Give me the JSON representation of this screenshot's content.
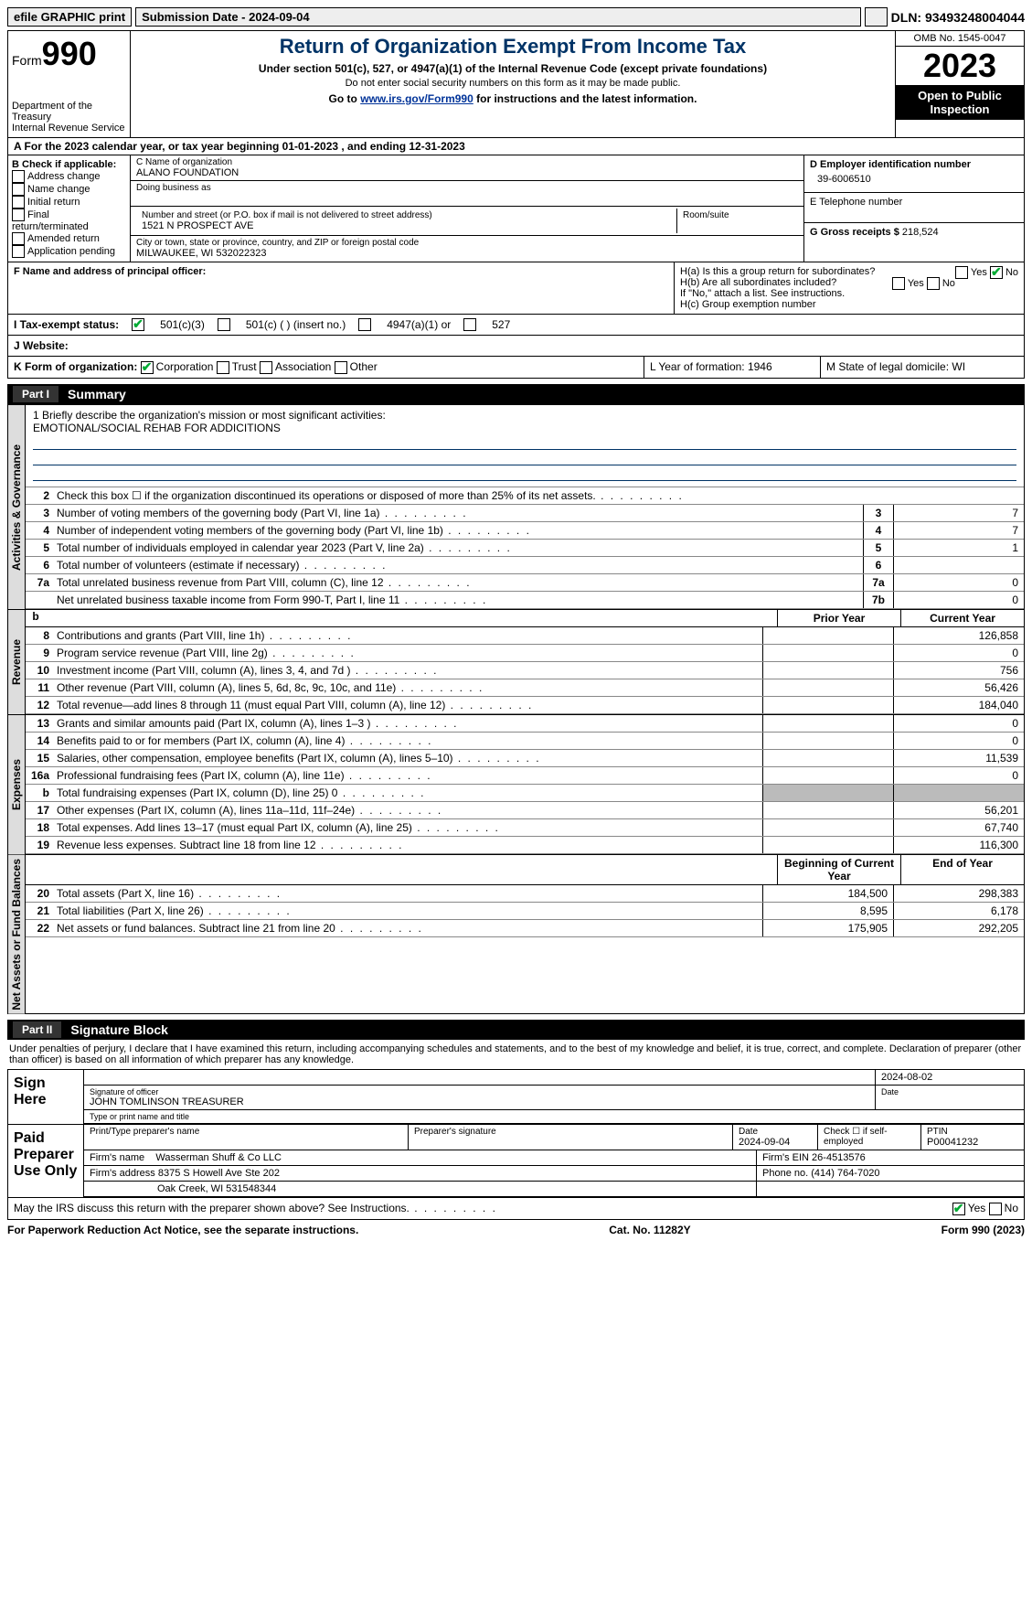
{
  "topbar": {
    "efile": "efile GRAPHIC print",
    "subdate": "Submission Date - 2024-09-04",
    "dln": "DLN: 93493248004044"
  },
  "header": {
    "form_label": "Form",
    "form_no": "990",
    "dept": "Department of the Treasury",
    "irs": "Internal Revenue Service",
    "title": "Return of Organization Exempt From Income Tax",
    "sub": "Under section 501(c), 527, or 4947(a)(1) of the Internal Revenue Code (except private foundations)",
    "sub2": "Do not enter social security numbers on this form as it may be made public.",
    "sub3_a": "Go to ",
    "sub3_link": "www.irs.gov/Form990",
    "sub3_b": " for instructions and the latest information.",
    "omb": "OMB No. 1545-0047",
    "year": "2023",
    "open": "Open to Public Inspection"
  },
  "line_a": "A For the 2023 calendar year, or tax year beginning 01-01-2023   , and ending 12-31-2023",
  "box_b": {
    "title": "B Check if applicable:",
    "opts": [
      "Address change",
      "Name change",
      "Initial return",
      "Final return/terminated",
      "Amended return",
      "Application pending"
    ]
  },
  "box_c": {
    "name_lbl": "C Name of organization",
    "name": "ALANO FOUNDATION",
    "dba_lbl": "Doing business as",
    "addr_lbl": "Number and street (or P.O. box if mail is not delivered to street address)",
    "room_lbl": "Room/suite",
    "addr": "1521 N PROSPECT AVE",
    "city_lbl": "City or town, state or province, country, and ZIP or foreign postal code",
    "city": "MILWAUKEE, WI  532022323"
  },
  "box_d": {
    "lbl": "D Employer identification number",
    "val": "39-6006510"
  },
  "box_e": {
    "lbl": "E Telephone number",
    "val": ""
  },
  "box_g": {
    "lbl": "G Gross receipts $",
    "val": "218,524"
  },
  "box_f": {
    "lbl": "F  Name and address of principal officer:",
    "val": ""
  },
  "box_h": {
    "a": "H(a)  Is this a group return for subordinates?",
    "b": "H(b)  Are all subordinates included?",
    "note": "If \"No,\" attach a list. See instructions.",
    "c": "H(c)  Group exemption number",
    "yes": "Yes",
    "no": "No"
  },
  "line_i": {
    "lbl": "I   Tax-exempt status:",
    "o1": "501(c)(3)",
    "o2": "501(c) (  ) (insert no.)",
    "o3": "4947(a)(1) or",
    "o4": "527"
  },
  "line_j": "J   Website:",
  "line_k": {
    "lbl": "K Form of organization:",
    "o1": "Corporation",
    "o2": "Trust",
    "o3": "Association",
    "o4": "Other"
  },
  "line_l": "L Year of formation: 1946",
  "line_m": "M State of legal domicile: WI",
  "part1": {
    "tab": "Part I",
    "title": "Summary"
  },
  "mission": {
    "lbl": "1   Briefly describe the organization's mission or most significant activities:",
    "txt": "EMOTIONAL/SOCIAL REHAB FOR ADDICITIONS"
  },
  "vtabs": {
    "gov": "Activities & Governance",
    "rev": "Revenue",
    "exp": "Expenses",
    "net": "Net Assets or Fund Balances"
  },
  "gov_lines": [
    {
      "n": "2",
      "d": "Check this box ☐ if the organization discontinued its operations or disposed of more than 25% of its net assets.",
      "box": "",
      "v": ""
    },
    {
      "n": "3",
      "d": "Number of voting members of the governing body (Part VI, line 1a)",
      "box": "3",
      "v": "7"
    },
    {
      "n": "4",
      "d": "Number of independent voting members of the governing body (Part VI, line 1b)",
      "box": "4",
      "v": "7"
    },
    {
      "n": "5",
      "d": "Total number of individuals employed in calendar year 2023 (Part V, line 2a)",
      "box": "5",
      "v": "1"
    },
    {
      "n": "6",
      "d": "Total number of volunteers (estimate if necessary)",
      "box": "6",
      "v": ""
    },
    {
      "n": "7a",
      "d": "Total unrelated business revenue from Part VIII, column (C), line 12",
      "box": "7a",
      "v": "0"
    },
    {
      "n": "",
      "d": "Net unrelated business taxable income from Form 990-T, Part I, line 11",
      "box": "7b",
      "v": "0"
    }
  ],
  "col_hdr": {
    "b": "b",
    "prior": "Prior Year",
    "cur": "Current Year"
  },
  "rev_lines": [
    {
      "n": "8",
      "d": "Contributions and grants (Part VIII, line 1h)",
      "p": "",
      "c": "126,858"
    },
    {
      "n": "9",
      "d": "Program service revenue (Part VIII, line 2g)",
      "p": "",
      "c": "0"
    },
    {
      "n": "10",
      "d": "Investment income (Part VIII, column (A), lines 3, 4, and 7d )",
      "p": "",
      "c": "756"
    },
    {
      "n": "11",
      "d": "Other revenue (Part VIII, column (A), lines 5, 6d, 8c, 9c, 10c, and 11e)",
      "p": "",
      "c": "56,426"
    },
    {
      "n": "12",
      "d": "Total revenue—add lines 8 through 11 (must equal Part VIII, column (A), line 12)",
      "p": "",
      "c": "184,040"
    }
  ],
  "exp_lines": [
    {
      "n": "13",
      "d": "Grants and similar amounts paid (Part IX, column (A), lines 1–3 )",
      "p": "",
      "c": "0"
    },
    {
      "n": "14",
      "d": "Benefits paid to or for members (Part IX, column (A), line 4)",
      "p": "",
      "c": "0"
    },
    {
      "n": "15",
      "d": "Salaries, other compensation, employee benefits (Part IX, column (A), lines 5–10)",
      "p": "",
      "c": "11,539"
    },
    {
      "n": "16a",
      "d": "Professional fundraising fees (Part IX, column (A), line 11e)",
      "p": "",
      "c": "0"
    },
    {
      "n": "b",
      "d": "Total fundraising expenses (Part IX, column (D), line 25) 0",
      "p": "shade",
      "c": "shade"
    },
    {
      "n": "17",
      "d": "Other expenses (Part IX, column (A), lines 11a–11d, 11f–24e)",
      "p": "",
      "c": "56,201"
    },
    {
      "n": "18",
      "d": "Total expenses. Add lines 13–17 (must equal Part IX, column (A), line 25)",
      "p": "",
      "c": "67,740"
    },
    {
      "n": "19",
      "d": "Revenue less expenses. Subtract line 18 from line 12",
      "p": "",
      "c": "116,300"
    }
  ],
  "net_hdr": {
    "beg": "Beginning of Current Year",
    "end": "End of Year"
  },
  "net_lines": [
    {
      "n": "20",
      "d": "Total assets (Part X, line 16)",
      "p": "184,500",
      "c": "298,383"
    },
    {
      "n": "21",
      "d": "Total liabilities (Part X, line 26)",
      "p": "8,595",
      "c": "6,178"
    },
    {
      "n": "22",
      "d": "Net assets or fund balances. Subtract line 21 from line 20",
      "p": "175,905",
      "c": "292,205"
    }
  ],
  "part2": {
    "tab": "Part II",
    "title": "Signature Block"
  },
  "sig_text": "Under penalties of perjury, I declare that I have examined this return, including accompanying schedules and statements, and to the best of my knowledge and belief, it is true, correct, and complete. Declaration of preparer (other than officer) is based on all information of which preparer has any knowledge.",
  "sign_here": {
    "lab": "Sign Here",
    "sig_lbl": "Signature of officer",
    "date_lbl": "Date",
    "date": "2024-08-02",
    "name": "JOHN TOMLINSON  TREASURER",
    "name_lbl": "Type or print name and title"
  },
  "paid": {
    "lab": "Paid Preparer Use Only",
    "h1": "Print/Type preparer's name",
    "h2": "Preparer's signature",
    "h3": "Date",
    "h4": "Check ☐ if self-employed",
    "h5": "PTIN",
    "date": "2024-09-04",
    "ptin": "P00041232",
    "firm_lbl": "Firm's name",
    "firm": "Wasserman Shuff & Co LLC",
    "ein_lbl": "Firm's EIN",
    "ein": "26-4513576",
    "addr_lbl": "Firm's address",
    "addr": "8375 S Howell Ave Ste 202",
    "city": "Oak Creek, WI  531548344",
    "phone_lbl": "Phone no.",
    "phone": "(414) 764-7020"
  },
  "discuss": "May the IRS discuss this return with the preparer shown above? See Instructions.",
  "footer": {
    "l": "For Paperwork Reduction Act Notice, see the separate instructions.",
    "m": "Cat. No. 11282Y",
    "r": "Form 990 (2023)"
  }
}
